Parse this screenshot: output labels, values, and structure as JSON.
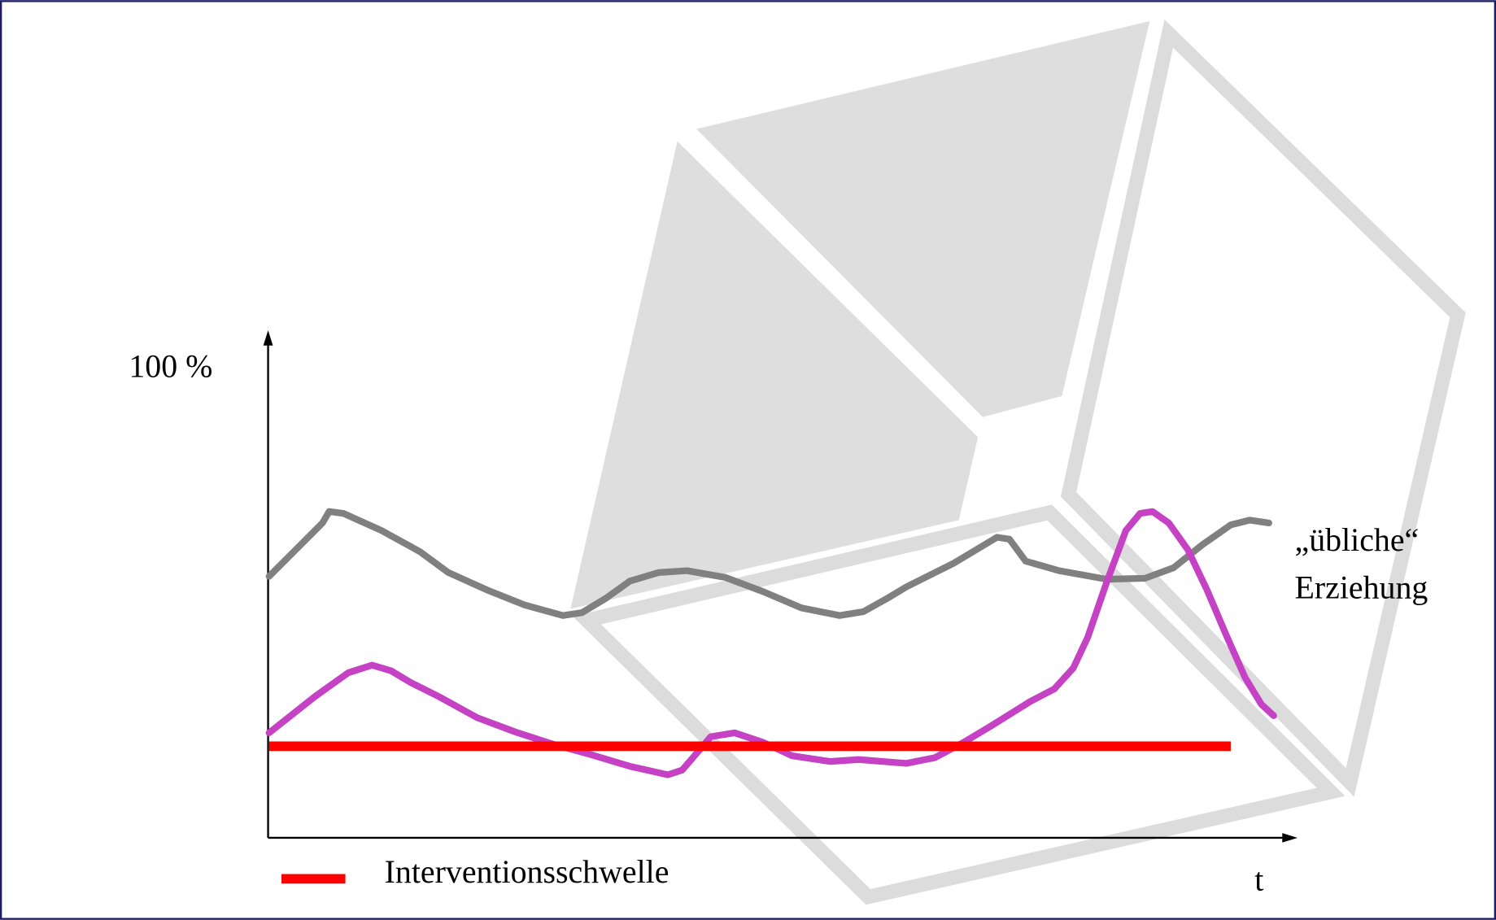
{
  "axis": {
    "y_label": "100 %",
    "x_label": "t"
  },
  "curve_label": [
    "„übliche“",
    "Erziehung"
  ],
  "legend": {
    "label": "Interventionsschwelle"
  }
}
